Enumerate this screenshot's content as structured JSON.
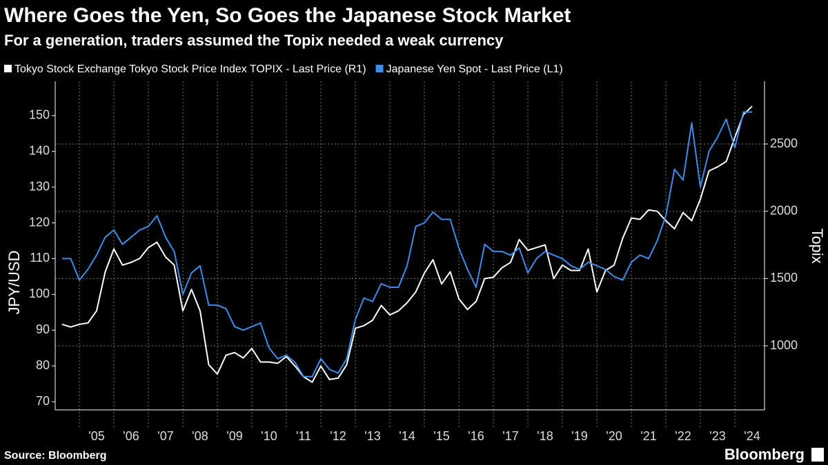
{
  "chart_data": {
    "type": "line",
    "title": "Where Goes the Yen, So Goes the Japanese Stock Market",
    "subtitle": "For a generation, traders assumed the Topix needed a weak currency",
    "y_label": "JPY/USD",
    "y2_label": "Topix",
    "source": "Source: Bloomberg",
    "brand": "Bloomberg",
    "x": [
      2004.5,
      2004.75,
      2005,
      2005.25,
      2005.5,
      2005.75,
      2006,
      2006.25,
      2006.5,
      2006.75,
      2007,
      2007.25,
      2007.5,
      2007.75,
      2008,
      2008.25,
      2008.5,
      2008.75,
      2009,
      2009.25,
      2009.5,
      2009.75,
      2010,
      2010.25,
      2010.5,
      2010.75,
      2011,
      2011.25,
      2011.5,
      2011.75,
      2012,
      2012.25,
      2012.5,
      2012.75,
      2013,
      2013.25,
      2013.5,
      2013.75,
      2014,
      2014.25,
      2014.5,
      2014.75,
      2015,
      2015.25,
      2015.5,
      2015.75,
      2016,
      2016.25,
      2016.5,
      2016.75,
      2017,
      2017.25,
      2017.5,
      2017.75,
      2018,
      2018.25,
      2018.5,
      2018.75,
      2019,
      2019.25,
      2019.5,
      2019.75,
      2020,
      2020.25,
      2020.5,
      2020.75,
      2021,
      2021.25,
      2021.5,
      2021.75,
      2022,
      2022.25,
      2022.5,
      2022.75,
      2023,
      2023.25,
      2023.5,
      2023.75,
      2024,
      2024.25,
      2024.5
    ],
    "series": [
      {
        "name": "Tokyo Stock Exchange Tokyo Stock Price Index TOPIX - Last Price (R1)",
        "color": "#ffffff",
        "axis": "y2",
        "values": [
          1160,
          1140,
          1160,
          1170,
          1260,
          1550,
          1720,
          1600,
          1620,
          1650,
          1730,
          1770,
          1660,
          1600,
          1260,
          1420,
          1260,
          860,
          790,
          930,
          950,
          910,
          980,
          880,
          880,
          870,
          920,
          850,
          770,
          730,
          850,
          750,
          760,
          860,
          1130,
          1150,
          1190,
          1300,
          1230,
          1260,
          1320,
          1400,
          1540,
          1640,
          1460,
          1550,
          1350,
          1270,
          1330,
          1500,
          1510,
          1580,
          1620,
          1790,
          1710,
          1730,
          1750,
          1500,
          1600,
          1560,
          1560,
          1720,
          1400,
          1560,
          1600,
          1800,
          1950,
          1940,
          2010,
          2000,
          1930,
          1870,
          1990,
          1930,
          2090,
          2300,
          2330,
          2370,
          2550,
          2720,
          2780
        ]
      },
      {
        "name": "Japanese Yen Spot - Last Price (L1)",
        "color": "#3d8ee8",
        "values": [
          110,
          110,
          104,
          107,
          111,
          116,
          118,
          114,
          116,
          118,
          119,
          122,
          116,
          112,
          100,
          106,
          108,
          97,
          97,
          96,
          91,
          90,
          91,
          92,
          85,
          82,
          83,
          81,
          77,
          77,
          82,
          79,
          78,
          82,
          93,
          99,
          98,
          103,
          102,
          102,
          108,
          119,
          120,
          123,
          121,
          121,
          113,
          107,
          102,
          114,
          112,
          112,
          111,
          113,
          106,
          110,
          112,
          111,
          110,
          108,
          107,
          109,
          108,
          107,
          105,
          104,
          109,
          111,
          110,
          115,
          122,
          135,
          132,
          148,
          130,
          140,
          144,
          149,
          141,
          151,
          151
        ]
      }
    ],
    "xlim": [
      2004.3,
      2024.86
    ],
    "xticks": [
      {
        "value": 2005,
        "label": "'05"
      },
      {
        "value": 2006,
        "label": "'06"
      },
      {
        "value": 2007,
        "label": "'07"
      },
      {
        "value": 2008,
        "label": "'08"
      },
      {
        "value": 2009,
        "label": "'09"
      },
      {
        "value": 2010,
        "label": "'10"
      },
      {
        "value": 2011,
        "label": "'11"
      },
      {
        "value": 2012,
        "label": "'12"
      },
      {
        "value": 2013,
        "label": "'13"
      },
      {
        "value": 2014,
        "label": "'14"
      },
      {
        "value": 2015,
        "label": "'15"
      },
      {
        "value": 2016,
        "label": "'16"
      },
      {
        "value": 2017,
        "label": "'17"
      },
      {
        "value": 2018,
        "label": "'18"
      },
      {
        "value": 2019,
        "label": "'19"
      },
      {
        "value": 2020,
        "label": "'20"
      },
      {
        "value": 2021,
        "label": "'21"
      },
      {
        "value": 2022,
        "label": "'22"
      },
      {
        "value": 2023,
        "label": "'23"
      },
      {
        "value": 2024,
        "label": "'24"
      }
    ],
    "ylim": [
      67.7,
      159.6
    ],
    "yticks": [
      70,
      80,
      90,
      100,
      110,
      120,
      130,
      140,
      150
    ],
    "y2lim": [
      524,
      2966
    ],
    "y2ticks": [
      1000,
      1500,
      2000,
      2500
    ],
    "grid": true
  }
}
